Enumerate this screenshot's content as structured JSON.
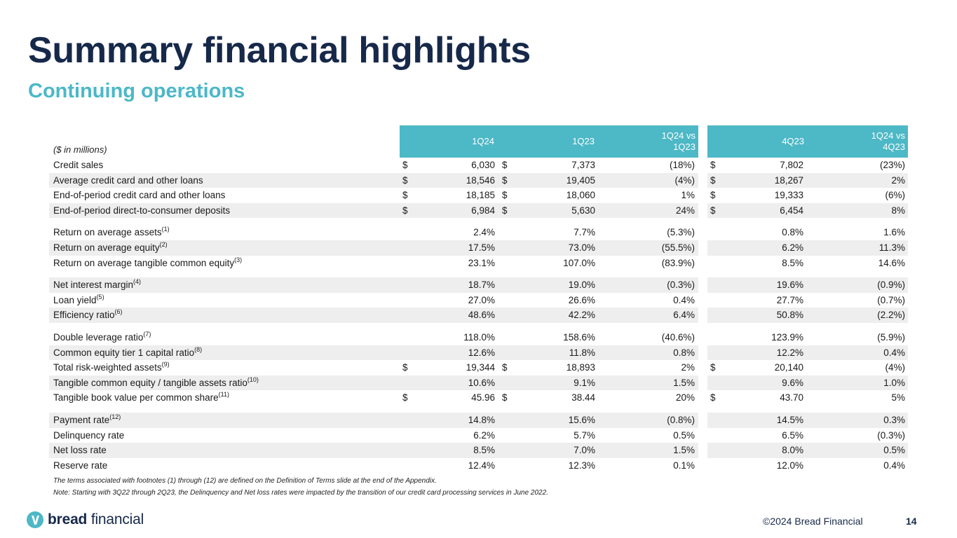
{
  "title": "Summary financial highlights",
  "subtitle": "Continuing operations",
  "units_label": "($ in millions)",
  "columns": [
    {
      "l1": "1Q24",
      "l2": ""
    },
    {
      "l1": "1Q23",
      "l2": ""
    },
    {
      "l1": "1Q24 vs",
      "l2": "1Q23"
    },
    {
      "l1": "4Q23",
      "l2": ""
    },
    {
      "l1": "1Q24 vs",
      "l2": "4Q23"
    }
  ],
  "rows": [
    {
      "label": "Credit sales",
      "sup": "",
      "d1": "$",
      "c1": "6,030",
      "d2": "$",
      "c2": "7,373",
      "c3": "(18%)",
      "d4": "$",
      "c4": "7,802",
      "c5": "(23%)",
      "shaded": false,
      "gap": false
    },
    {
      "label": "Average credit card and other loans",
      "sup": "",
      "d1": "$",
      "c1": "18,546",
      "d2": "$",
      "c2": "19,405",
      "c3": "(4%)",
      "d4": "$",
      "c4": "18,267",
      "c5": "2%",
      "shaded": true,
      "gap": false
    },
    {
      "label": "End-of-period credit card and other loans",
      "sup": "",
      "d1": "$",
      "c1": "18,185",
      "d2": "$",
      "c2": "18,060",
      "c3": "1%",
      "d4": "$",
      "c4": "19,333",
      "c5": "(6%)",
      "shaded": false,
      "gap": false
    },
    {
      "label": "End-of-period direct-to-consumer deposits",
      "sup": "",
      "d1": "$",
      "c1": "6,984",
      "d2": "$",
      "c2": "5,630",
      "c3": "24%",
      "d4": "$",
      "c4": "6,454",
      "c5": "8%",
      "shaded": true,
      "gap": false
    },
    {
      "label": "Return on average assets",
      "sup": "(1)",
      "d1": "",
      "c1": "2.4%",
      "d2": "",
      "c2": "7.7%",
      "c3": "(5.3%)",
      "d4": "",
      "c4": "0.8%",
      "c5": "1.6%",
      "shaded": false,
      "gap": true
    },
    {
      "label": "Return on average equity",
      "sup": "(2)",
      "d1": "",
      "c1": "17.5%",
      "d2": "",
      "c2": "73.0%",
      "c3": "(55.5%)",
      "d4": "",
      "c4": "6.2%",
      "c5": "11.3%",
      "shaded": true,
      "gap": false
    },
    {
      "label": "Return on average tangible common equity",
      "sup": "(3)",
      "d1": "",
      "c1": "23.1%",
      "d2": "",
      "c2": "107.0%",
      "c3": "(83.9%)",
      "d4": "",
      "c4": "8.5%",
      "c5": "14.6%",
      "shaded": false,
      "gap": false
    },
    {
      "label": "Net interest margin",
      "sup": "(4)",
      "d1": "",
      "c1": "18.7%",
      "d2": "",
      "c2": "19.0%",
      "c3": "(0.3%)",
      "d4": "",
      "c4": "19.6%",
      "c5": "(0.9%)",
      "shaded": true,
      "gap": true
    },
    {
      "label": "Loan yield",
      "sup": "(5)",
      "d1": "",
      "c1": "27.0%",
      "d2": "",
      "c2": "26.6%",
      "c3": "0.4%",
      "d4": "",
      "c4": "27.7%",
      "c5": "(0.7%)",
      "shaded": false,
      "gap": false
    },
    {
      "label": "Efficiency ratio",
      "sup": "(6)",
      "d1": "",
      "c1": "48.6%",
      "d2": "",
      "c2": "42.2%",
      "c3": "6.4%",
      "d4": "",
      "c4": "50.8%",
      "c5": "(2.2%)",
      "shaded": true,
      "gap": false
    },
    {
      "label": "Double leverage ratio",
      "sup": "(7)",
      "d1": "",
      "c1": "118.0%",
      "d2": "",
      "c2": "158.6%",
      "c3": "(40.6%)",
      "d4": "",
      "c4": "123.9%",
      "c5": "(5.9%)",
      "shaded": false,
      "gap": true
    },
    {
      "label": "Common equity tier 1 capital ratio",
      "sup": "(8)",
      "d1": "",
      "c1": "12.6%",
      "d2": "",
      "c2": "11.8%",
      "c3": "0.8%",
      "d4": "",
      "c4": "12.2%",
      "c5": "0.4%",
      "shaded": true,
      "gap": false
    },
    {
      "label": "Total risk-weighted assets",
      "sup": "(9)",
      "d1": "$",
      "c1": "19,344",
      "d2": "$",
      "c2": "18,893",
      "c3": "2%",
      "d4": "$",
      "c4": "20,140",
      "c5": "(4%)",
      "shaded": false,
      "gap": false
    },
    {
      "label": "Tangible common equity / tangible assets ratio",
      "sup": "(10)",
      "d1": "",
      "c1": "10.6%",
      "d2": "",
      "c2": "9.1%",
      "c3": "1.5%",
      "d4": "",
      "c4": "9.6%",
      "c5": "1.0%",
      "shaded": true,
      "gap": false
    },
    {
      "label": "Tangible book value per common share",
      "sup": "(11)",
      "d1": "$",
      "c1": "45.96",
      "d2": "$",
      "c2": "38.44",
      "c3": "20%",
      "d4": "$",
      "c4": "43.70",
      "c5": "5%",
      "shaded": false,
      "gap": false
    },
    {
      "label": "Payment rate",
      "sup": "(12)",
      "d1": "",
      "c1": "14.8%",
      "d2": "",
      "c2": "15.6%",
      "c3": "(0.8%)",
      "d4": "",
      "c4": "14.5%",
      "c5": "0.3%",
      "shaded": true,
      "gap": true
    },
    {
      "label": "Delinquency rate",
      "sup": "",
      "d1": "",
      "c1": "6.2%",
      "d2": "",
      "c2": "5.7%",
      "c3": "0.5%",
      "d4": "",
      "c4": "6.5%",
      "c5": "(0.3%)",
      "shaded": false,
      "gap": false
    },
    {
      "label": "Net loss rate",
      "sup": "",
      "d1": "",
      "c1": "8.5%",
      "d2": "",
      "c2": "7.0%",
      "c3": "1.5%",
      "d4": "",
      "c4": "8.0%",
      "c5": "0.5%",
      "shaded": true,
      "gap": false
    },
    {
      "label": "Reserve rate",
      "sup": "",
      "d1": "",
      "c1": "12.4%",
      "d2": "",
      "c2": "12.3%",
      "c3": "0.1%",
      "d4": "",
      "c4": "12.0%",
      "c5": "0.4%",
      "shaded": false,
      "gap": false
    }
  ],
  "footnotes": [
    "The terms associated with footnotes (1) through (12) are defined on the Definition of Terms slide at the end of the Appendix.",
    "Note: Starting with 3Q22 through 2Q23, the Delinquency and Net loss rates were impacted by the transition of our credit card processing services in June 2022."
  ],
  "logo": {
    "bold": "bread",
    "rest": " financial",
    "icon": "bread-logo-icon"
  },
  "copyright": "©2024 Bread Financial",
  "page_number": "14",
  "colors": {
    "title": "#17294a",
    "accent": "#4db8c6",
    "row_shade": "#eeeeee"
  }
}
